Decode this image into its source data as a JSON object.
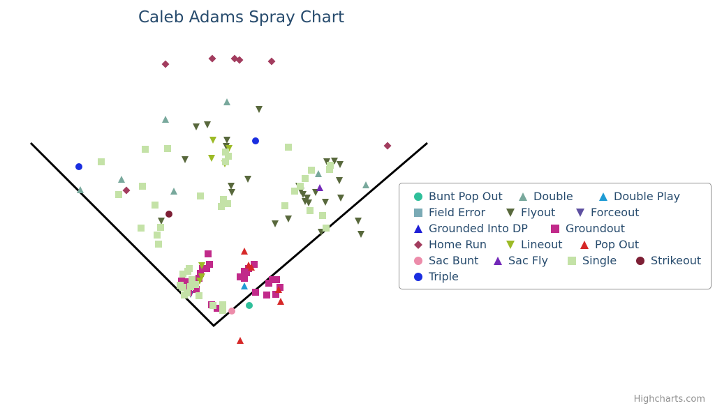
{
  "chart_data": {
    "type": "scatter",
    "title": "Caleb Adams Spray Chart",
    "credits": "Highcharts.com",
    "legend_position": "right",
    "field": {
      "home_plate": [
        0,
        0
      ],
      "left_foul_line_end": [
        -262,
        262
      ],
      "right_foul_line_end": [
        306,
        262
      ]
    },
    "series": [
      {
        "name": "Bunt Pop Out",
        "color": "#2fbf9a",
        "marker": "circle",
        "points": [
          [
            51,
            29
          ]
        ]
      },
      {
        "name": "Double",
        "color": "#78a89c",
        "marker": "triangle",
        "points": [
          [
            -191,
            195
          ],
          [
            -132,
            210
          ],
          [
            -69,
            296
          ],
          [
            19,
            321
          ],
          [
            -57,
            193
          ],
          [
            150,
            218
          ],
          [
            218,
            202
          ]
        ]
      },
      {
        "name": "Double Play",
        "color": "#1e9bd4",
        "marker": "triangle",
        "points": [
          [
            44,
            57
          ]
        ]
      },
      {
        "name": "Field Error",
        "color": "#7aaab5",
        "marker": "square",
        "points": []
      },
      {
        "name": "Flyout",
        "color": "#58683c",
        "marker": "triangle-down",
        "points": [
          [
            -25,
            285
          ],
          [
            -9,
            288
          ],
          [
            18,
            257
          ],
          [
            -41,
            238
          ],
          [
            19,
            266
          ],
          [
            65,
            310
          ],
          [
            49,
            210
          ],
          [
            25,
            200
          ],
          [
            26,
            191
          ],
          [
            -75,
            150
          ],
          [
            88,
            146
          ],
          [
            107,
            153
          ],
          [
            128,
            188
          ],
          [
            125,
            193
          ],
          [
            134,
            183
          ],
          [
            136,
            176
          ],
          [
            162,
            235
          ],
          [
            168,
            229
          ],
          [
            173,
            236
          ],
          [
            181,
            231
          ],
          [
            182,
            183
          ],
          [
            160,
            177
          ],
          [
            146,
            191
          ],
          [
            207,
            150
          ],
          [
            180,
            208
          ],
          [
            154,
            134
          ],
          [
            211,
            131
          ],
          [
            122,
            200
          ],
          [
            131,
            178
          ]
        ]
      },
      {
        "name": "Forceout",
        "color": "#5d4fa0",
        "marker": "triangle-down",
        "points": [
          [
            -33,
            45
          ]
        ]
      },
      {
        "name": "Grounded Into DP",
        "color": "#1f1fd6",
        "marker": "triangle",
        "points": []
      },
      {
        "name": "Groundout",
        "color": "#c12a8a",
        "marker": "square",
        "points": [
          [
            -8,
            103
          ],
          [
            -6,
            88
          ],
          [
            -10,
            82
          ],
          [
            -16,
            82
          ],
          [
            -21,
            68
          ],
          [
            -19,
            75
          ],
          [
            -28,
            60
          ],
          [
            -36,
            48
          ],
          [
            -41,
            63
          ],
          [
            -46,
            64
          ],
          [
            -40,
            55
          ],
          [
            -25,
            52
          ],
          [
            -3,
            30
          ],
          [
            5,
            25
          ],
          [
            13,
            27
          ],
          [
            44,
            78
          ],
          [
            50,
            82
          ],
          [
            58,
            88
          ],
          [
            38,
            70
          ],
          [
            47,
            76
          ],
          [
            79,
            61
          ],
          [
            84,
            66
          ],
          [
            90,
            66
          ],
          [
            95,
            55
          ],
          [
            76,
            44
          ],
          [
            60,
            48
          ],
          [
            89,
            45
          ],
          [
            44,
            68
          ]
        ]
      },
      {
        "name": "Home Run",
        "color": "#a23c5e",
        "marker": "diamond",
        "points": [
          [
            -69,
            375
          ],
          [
            -2,
            383
          ],
          [
            30,
            383
          ],
          [
            37,
            381
          ],
          [
            83,
            379
          ],
          [
            249,
            258
          ],
          [
            -125,
            194
          ]
        ]
      },
      {
        "name": "Lineout",
        "color": "#9cba26",
        "marker": "triangle-down",
        "points": [
          [
            -17,
            86
          ],
          [
            -17,
            70
          ],
          [
            -1,
            266
          ],
          [
            16,
            232
          ],
          [
            22,
            254
          ],
          [
            -3,
            240
          ],
          [
            -20,
            64
          ]
        ]
      },
      {
        "name": "Pop Out",
        "color": "#d62828",
        "marker": "triangle",
        "points": [
          [
            44,
            107
          ],
          [
            50,
            87
          ],
          [
            54,
            84
          ],
          [
            93,
            52
          ],
          [
            96,
            35
          ],
          [
            38,
            -21
          ]
        ]
      },
      {
        "name": "Sac Bunt",
        "color": "#ec8caa",
        "marker": "circle",
        "points": [
          [
            26,
            21
          ]
        ]
      },
      {
        "name": "Sac Fly",
        "color": "#7328b8",
        "marker": "triangle",
        "points": [
          [
            152,
            198
          ]
        ]
      },
      {
        "name": "Single",
        "color": "#c4e2a7",
        "marker": "square",
        "points": [
          [
            -161,
            235
          ],
          [
            -98,
            253
          ],
          [
            -136,
            188
          ],
          [
            -102,
            200
          ],
          [
            -84,
            173
          ],
          [
            -76,
            141
          ],
          [
            -81,
            130
          ],
          [
            -79,
            117
          ],
          [
            -104,
            140
          ],
          [
            -66,
            254
          ],
          [
            -19,
            186
          ],
          [
            11,
            171
          ],
          [
            14,
            181
          ],
          [
            20,
            175
          ],
          [
            -35,
            82
          ],
          [
            -37,
            78
          ],
          [
            -44,
            74
          ],
          [
            -31,
            66
          ],
          [
            -33,
            56
          ],
          [
            -38,
            47
          ],
          [
            -48,
            58
          ],
          [
            -42,
            44
          ],
          [
            -44,
            55
          ],
          [
            -21,
            43
          ],
          [
            13,
            30
          ],
          [
            -1,
            29
          ],
          [
            13,
            22
          ],
          [
            -26,
            59
          ],
          [
            17,
            235
          ],
          [
            21,
            243
          ],
          [
            17,
            249
          ],
          [
            107,
            256
          ],
          [
            116,
            193
          ],
          [
            102,
            172
          ],
          [
            140,
            223
          ],
          [
            131,
            211
          ],
          [
            124,
            200
          ],
          [
            166,
            224
          ],
          [
            167,
            230
          ],
          [
            161,
            140
          ],
          [
            156,
            158
          ],
          [
            138,
            165
          ]
        ]
      },
      {
        "name": "Strikeout",
        "color": "#7d1f35",
        "marker": "circle",
        "points": [
          [
            -64,
            160
          ]
        ]
      },
      {
        "name": "Triple",
        "color": "#1a2ee0",
        "marker": "circle",
        "points": [
          [
            -193,
            228
          ],
          [
            60,
            265
          ]
        ]
      }
    ]
  }
}
